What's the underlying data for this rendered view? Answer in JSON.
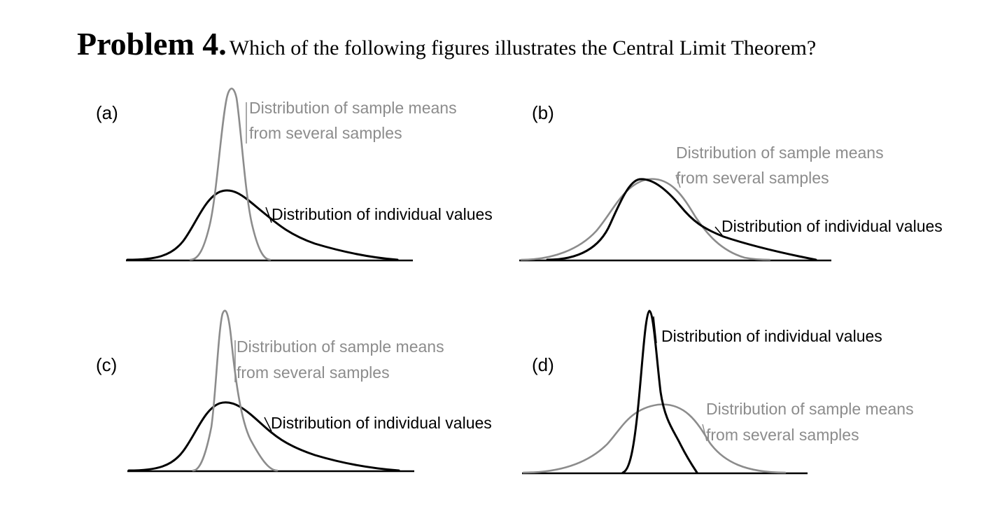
{
  "problem": {
    "number_label": "Problem 4.",
    "question": "Which of the following figures illustrates the Central Limit Theorem?"
  },
  "colors": {
    "individual_curve": "#000000",
    "sample_means_curve": "#8c8c8c"
  },
  "panels": {
    "a": {
      "label": "(a)",
      "sample_means_label": [
        "Distribution of sample means",
        "from several samples"
      ],
      "individual_label": "Distribution of individual values"
    },
    "b": {
      "label": "(b)",
      "sample_means_label": [
        "Distribution of sample means",
        "from several samples"
      ],
      "individual_label": "Distribution of individual values"
    },
    "c": {
      "label": "(c)",
      "sample_means_label": [
        "Distribution of sample means",
        "from several samples"
      ],
      "individual_label": "Distribution of individual values"
    },
    "d": {
      "label": "(d)",
      "sample_means_label": [
        "Distribution of sample means",
        "from several samples"
      ],
      "individual_label": "Distribution of individual values"
    }
  }
}
